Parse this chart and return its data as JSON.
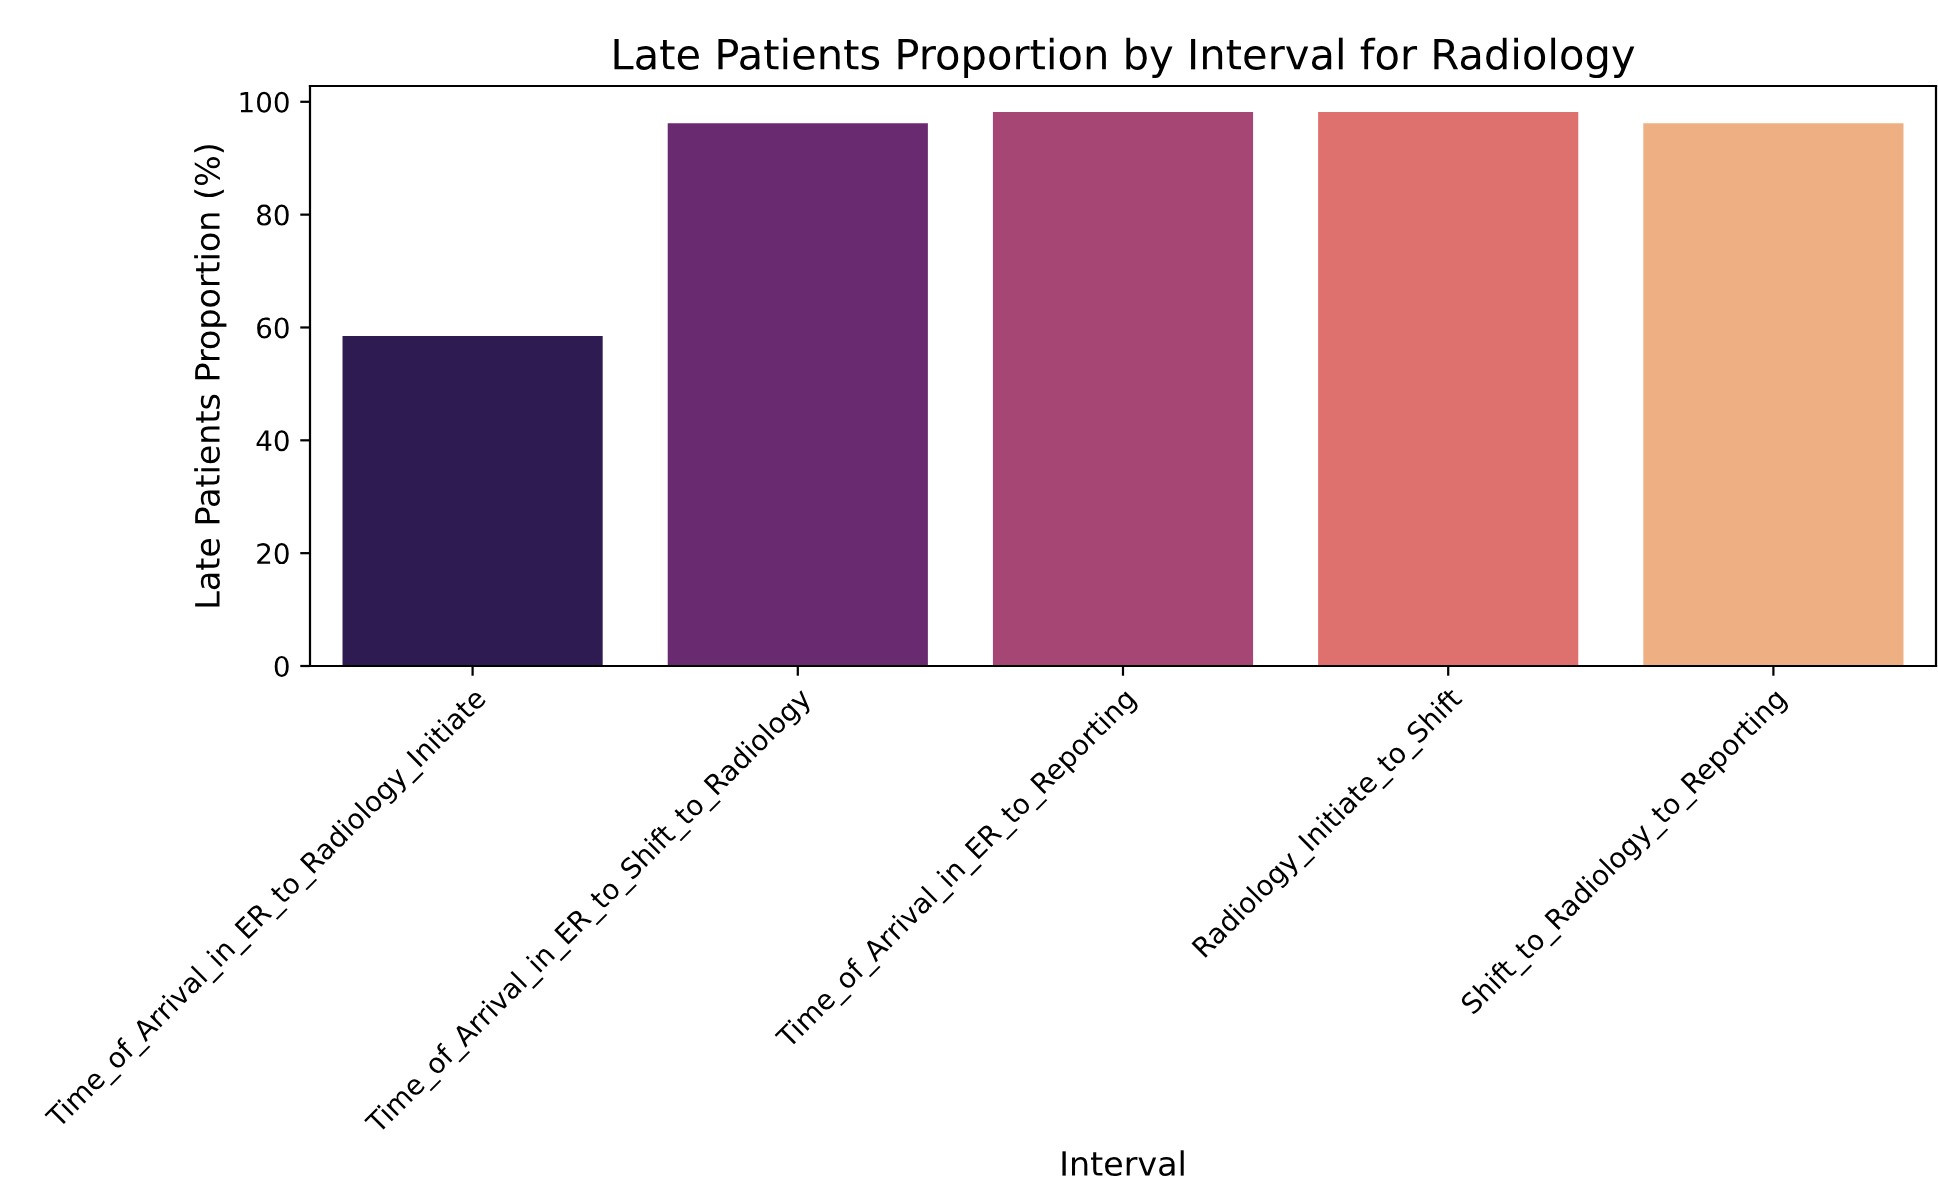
{
  "chart_data": {
    "type": "bar",
    "title": "Late Patients Proportion by Interval for Radiology",
    "xlabel": "Interval",
    "ylabel": "Late Patients Proportion (%)",
    "categories": [
      "Time_of_Arrival_in_ER_to_Radiology_Initiate",
      "Time_of_Arrival_in_ER_to_Shift_to_Radiology",
      "Time_of_Arrival_in_ER_to_Reporting",
      "Radiology_Initiate_to_Shift",
      "Shift_to_Radiology_to_Reporting"
    ],
    "values": [
      58.5,
      96.2,
      98.2,
      98.2,
      96.2
    ],
    "colors": [
      "#2d1b51",
      "#6a2a6f",
      "#a64675",
      "#de716d",
      "#eeb083"
    ],
    "ylim": [
      0,
      102.8
    ],
    "yticks": [
      0,
      20,
      40,
      60,
      80,
      100
    ],
    "grid": false,
    "legend": false
  }
}
